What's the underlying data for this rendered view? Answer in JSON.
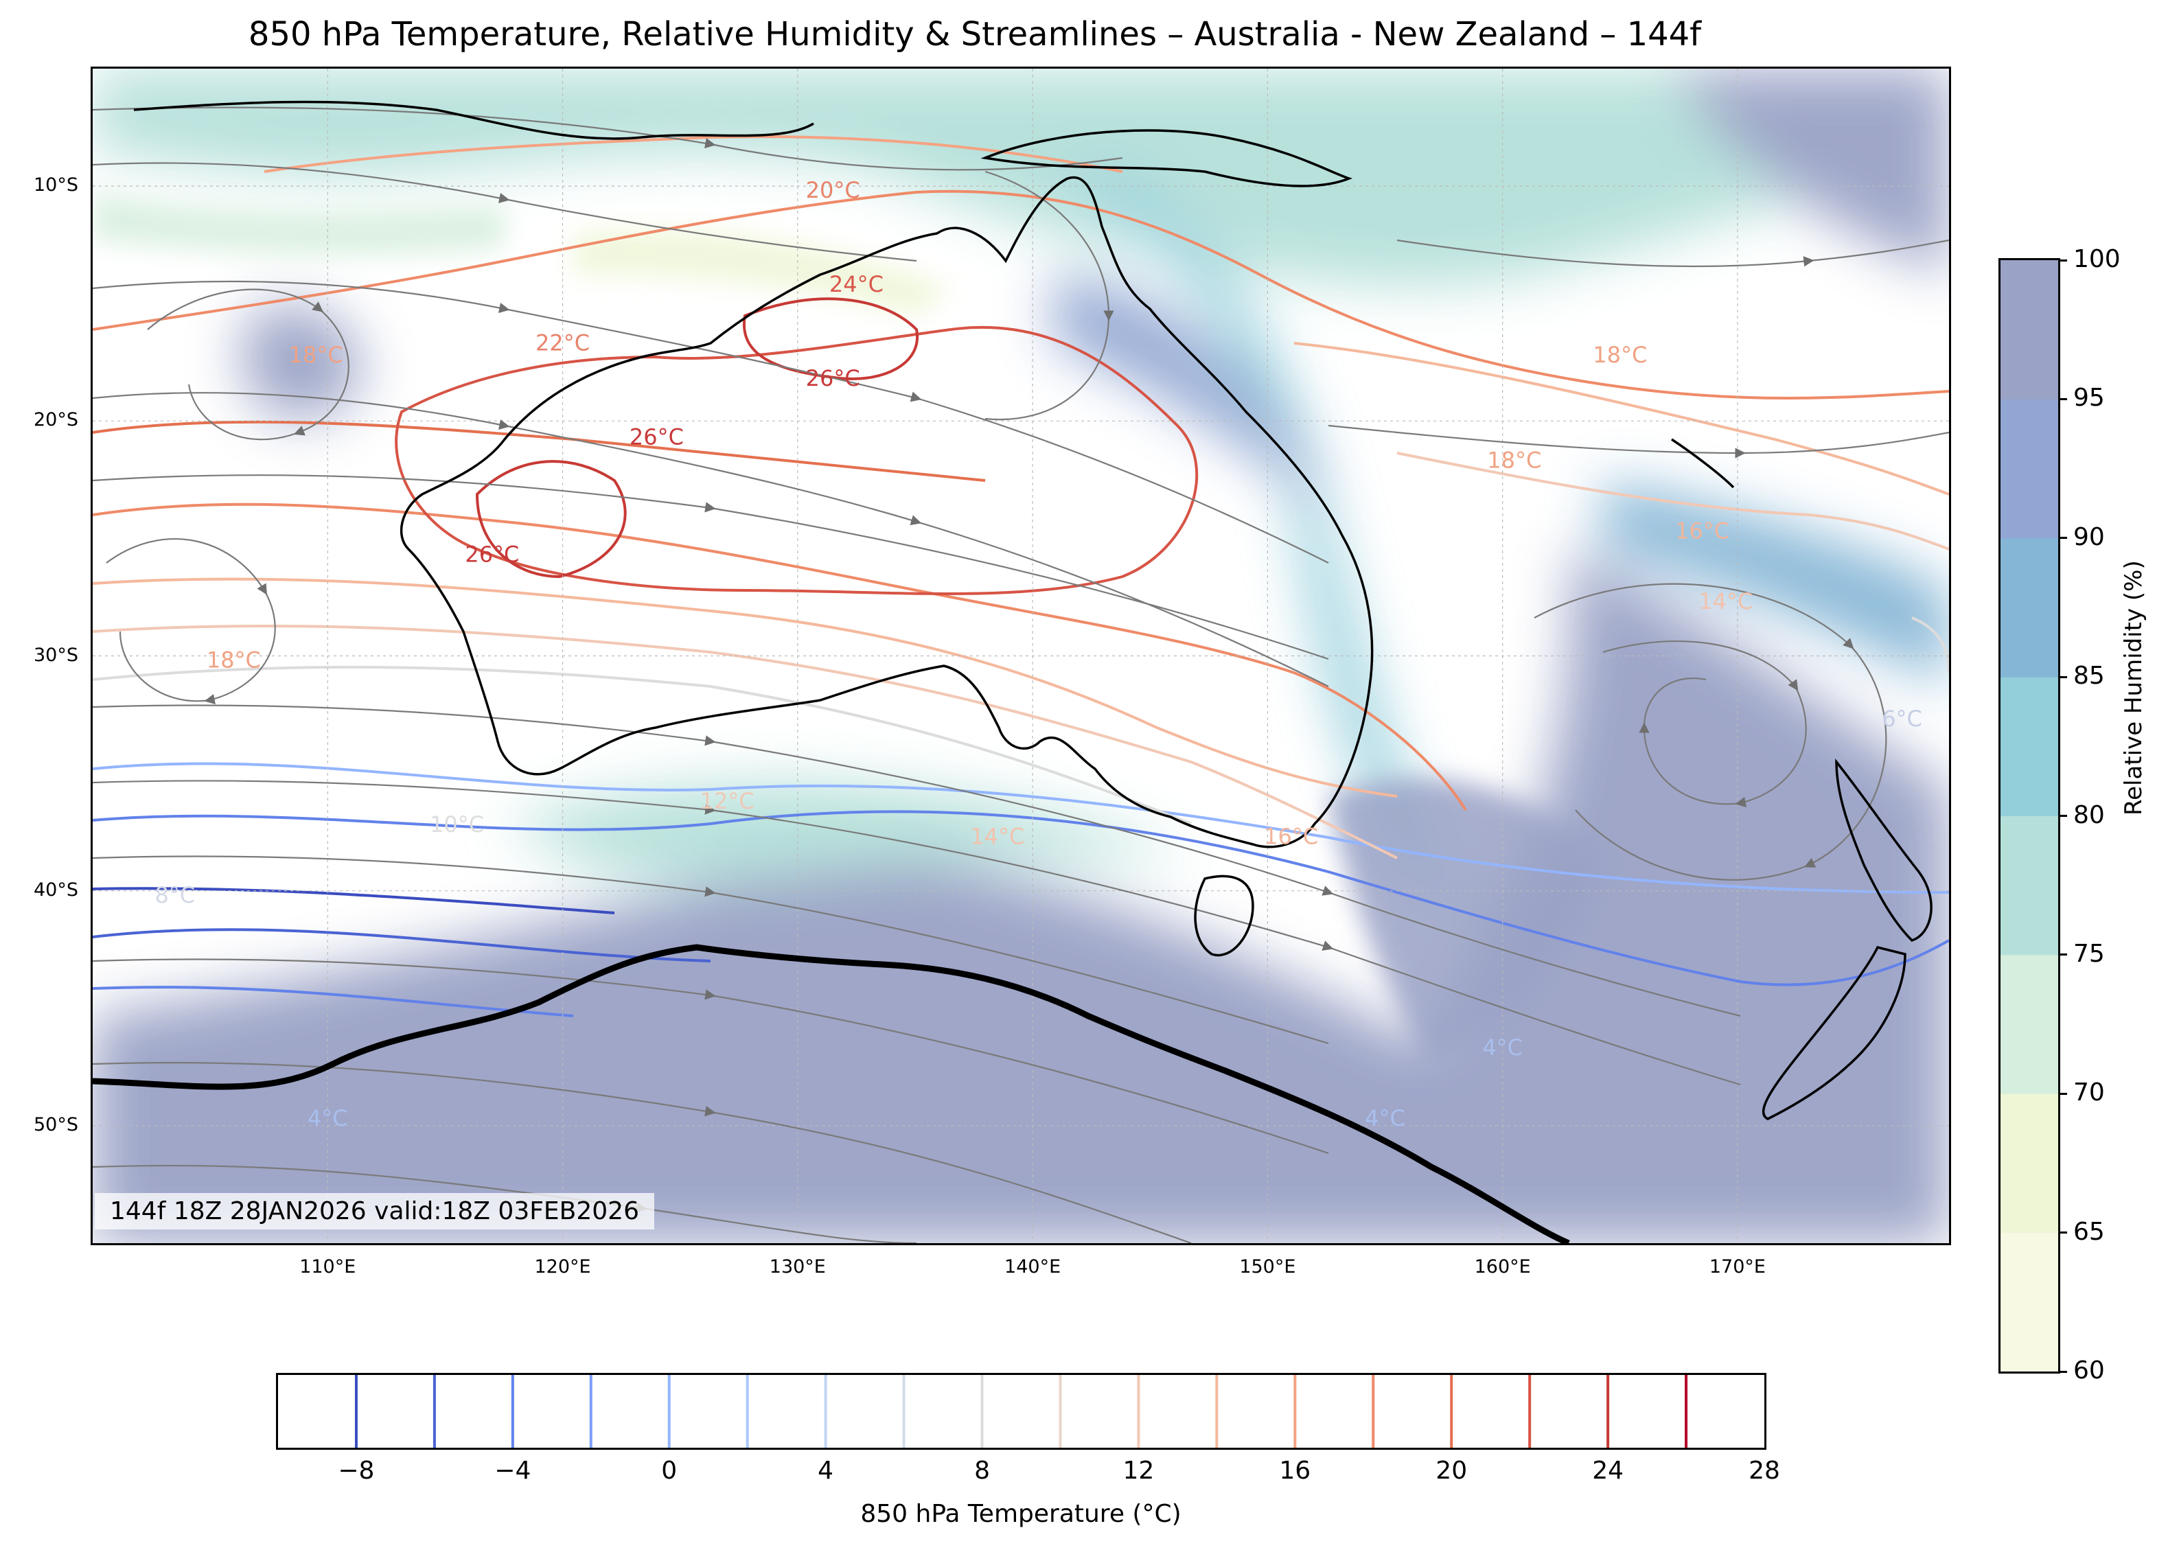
{
  "title": "850 hPa Temperature, Relative Humidity & Streamlines – Australia - New Zealand – 144f",
  "valid_text": "144f 18Z 28JAN2026 valid:18Z 03FEB2026",
  "map": {
    "lon_range": [
      100,
      179
    ],
    "lat_range": [
      -55,
      -5
    ],
    "lat_labels": [
      "10°S",
      "20°S",
      "30°S",
      "40°S",
      "50°S"
    ],
    "lat_values": [
      -10,
      -20,
      -30,
      -40,
      -50
    ],
    "lon_labels": [
      "110°E",
      "120°E",
      "130°E",
      "140°E",
      "150°E",
      "160°E",
      "170°E"
    ],
    "lon_values": [
      110,
      120,
      130,
      140,
      150,
      160,
      170
    ],
    "contour_labels": [
      {
        "text": "20°C",
        "lon": 131.5,
        "lat": -10.5,
        "color": "#e8836a"
      },
      {
        "text": "24°C",
        "lon": 132.5,
        "lat": -14.5,
        "color": "#d9574a"
      },
      {
        "text": "22°C",
        "lon": 120.0,
        "lat": -17.0,
        "color": "#e8836a"
      },
      {
        "text": "18°C",
        "lon": 109.5,
        "lat": -17.5,
        "color": "#f0a283"
      },
      {
        "text": "26°C",
        "lon": 124.0,
        "lat": -21.0,
        "color": "#c8393a"
      },
      {
        "text": "26°C",
        "lon": 131.5,
        "lat": -18.5,
        "color": "#c8393a"
      },
      {
        "text": "26°C",
        "lon": 117.0,
        "lat": -26.0,
        "color": "#c8393a"
      },
      {
        "text": "18°C",
        "lon": 106.0,
        "lat": -30.5,
        "color": "#f0a283"
      },
      {
        "text": "18°C",
        "lon": 165.0,
        "lat": -17.5,
        "color": "#f0a283"
      },
      {
        "text": "18°C",
        "lon": 160.5,
        "lat": -22.0,
        "color": "#f0a283"
      },
      {
        "text": "16°C",
        "lon": 168.5,
        "lat": -25.0,
        "color": "#f2b49a"
      },
      {
        "text": "14°C",
        "lon": 169.5,
        "lat": -28.0,
        "color": "#f2c2ad"
      },
      {
        "text": "12°C",
        "lon": 127.0,
        "lat": -36.5,
        "color": "#efc9b8"
      },
      {
        "text": "14°C",
        "lon": 138.5,
        "lat": -38.0,
        "color": "#f2c2ad"
      },
      {
        "text": "16°C",
        "lon": 151.0,
        "lat": -38.0,
        "color": "#f2b49a"
      },
      {
        "text": "10°C",
        "lon": 115.5,
        "lat": -37.5,
        "color": "#dddddd"
      },
      {
        "text": "8°C",
        "lon": 103.5,
        "lat": -40.5,
        "color": "#d4d8e6"
      },
      {
        "text": "4°C",
        "lon": 160.0,
        "lat": -47.0,
        "color": "#a9bfee"
      },
      {
        "text": "4°C",
        "lon": 155.0,
        "lat": -50.0,
        "color": "#a9bfee"
      },
      {
        "text": "4°C",
        "lon": 110.0,
        "lat": -50.0,
        "color": "#a9bfee"
      },
      {
        "text": "6°C",
        "lon": 177.0,
        "lat": -33.0,
        "color": "#c5cde6"
      }
    ]
  },
  "rh_colorbar": {
    "label": "Relative Humidity (%)",
    "ticks": [
      "60",
      "65",
      "70",
      "75",
      "80",
      "85",
      "90",
      "95",
      "100"
    ],
    "colors": [
      "#f7f9e2",
      "#eef6d6",
      "#d6eedd",
      "#b5e0da",
      "#93cedb",
      "#85b6d6",
      "#91a6d2",
      "#9aa2c6"
    ]
  },
  "temp_colorbar": {
    "label": "850 hPa Temperature (°C)",
    "range": [
      -10,
      28
    ],
    "ticks": [
      "−8",
      "−4",
      "0",
      "4",
      "8",
      "12",
      "16",
      "20",
      "24",
      "28"
    ],
    "tick_values": [
      -8,
      -4,
      0,
      4,
      8,
      12,
      16,
      20,
      24,
      28
    ],
    "levels": [
      -8,
      -6,
      -4,
      -2,
      0,
      2,
      4,
      6,
      8,
      10,
      12,
      14,
      16,
      18,
      20,
      22,
      24,
      26
    ],
    "level_colors": [
      "#3b4cc0",
      "#4a63d3",
      "#6282ea",
      "#7b9ff9",
      "#93b5fe",
      "#aac7fd",
      "#c0d4f5",
      "#d2dbe8",
      "#dddcdc",
      "#e9d5cb",
      "#f2c8b4",
      "#f5b89c",
      "#f5a282",
      "#ef8a68",
      "#e4704f",
      "#d75445",
      "#c73935",
      "#b40426"
    ]
  }
}
